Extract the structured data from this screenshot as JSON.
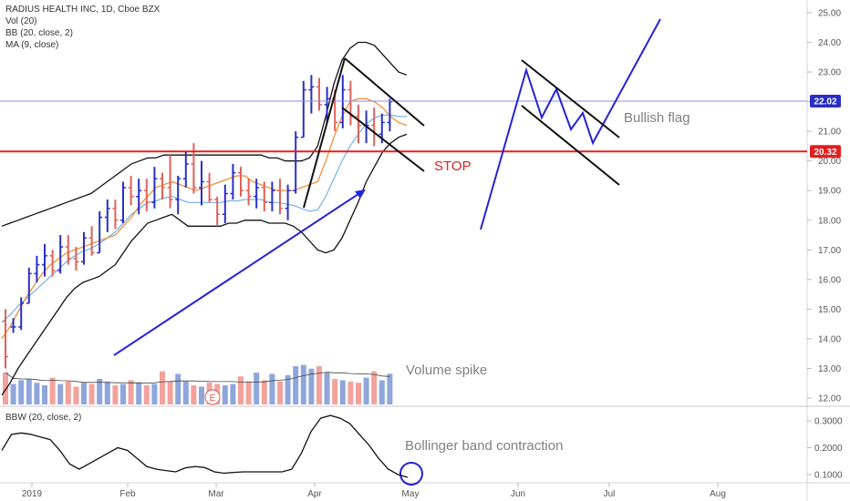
{
  "legend": {
    "title": "RADIUS HEALTH INC, 1D, Cboe BZX",
    "vol": "Vol (20)",
    "bb": "BB (20, close, 2)",
    "ma": "MA (9, close)"
  },
  "bbw_legend": "BBW (20, close, 2)",
  "annotations": {
    "stop": "STOP",
    "bullish_flag": "Bullish flag",
    "volume_spike": "Volume spike",
    "bb_contraction": "Bollinger band contraction",
    "earnings": "E"
  },
  "colors": {
    "up": "#2a2fc8",
    "down": "#e0615a",
    "vol_up": "#8fa6dc",
    "vol_down": "#f2a29c",
    "ma": "#f08a2c",
    "bb_mid": "#5aa4e6",
    "stop_line": "#e02020",
    "blue_draw": "#2323d9",
    "price_line": "#8b8bf0"
  },
  "chart_data": [
    {
      "type": "line",
      "title": "RADIUS HEALTH INC, 1D, Cboe BZX",
      "x_tick_labels": [
        "2019",
        "Feb",
        "Mar",
        "Apr",
        "May",
        "Jun",
        "Jul",
        "Aug"
      ],
      "y_tick_labels": [
        "12.00",
        "13.00",
        "14.00",
        "15.00",
        "16.00",
        "17.00",
        "18.00",
        "19.00",
        "20.00",
        "21.00",
        "22.00",
        "23.00",
        "24.00",
        "25.00"
      ],
      "ylim": [
        11.5,
        25.3
      ],
      "price_labels": [
        {
          "value": 22.02,
          "label": "22.02",
          "color": "#2a2fc8"
        },
        {
          "value": 20.32,
          "label": "20.32",
          "color": "#e02020"
        }
      ],
      "series": [
        {
          "name": "MA (9, close)",
          "values": [
            14.0,
            14.4,
            14.9,
            15.4,
            15.8,
            16.2,
            16.5,
            16.7,
            16.9,
            17.0,
            17.1,
            17.2,
            17.3,
            17.4,
            17.5,
            17.8,
            18.1,
            18.5,
            18.8,
            19.1,
            19.2,
            19.3,
            19.2,
            19.1,
            19.0,
            19.1,
            19.2,
            19.3,
            19.4,
            19.5,
            19.5,
            19.3,
            19.2,
            19.1,
            19.0,
            19.0,
            19.0,
            19.1,
            19.2,
            19.3,
            20.0,
            20.8,
            21.5,
            22.0,
            22.1,
            22.1,
            22.0,
            21.8,
            21.5,
            21.3,
            21.2
          ]
        },
        {
          "name": "BB upper",
          "values": [
            17.8,
            17.9,
            18.0,
            18.1,
            18.2,
            18.3,
            18.4,
            18.5,
            18.6,
            18.7,
            18.8,
            18.9,
            19.1,
            19.3,
            19.5,
            19.7,
            19.9,
            20.0,
            20.1,
            20.1,
            20.2,
            20.2,
            20.2,
            20.2,
            20.2,
            20.2,
            20.2,
            20.2,
            20.2,
            20.2,
            20.2,
            20.2,
            20.2,
            20.1,
            20.1,
            20.0,
            20.0,
            20.0,
            20.1,
            20.5,
            21.5,
            22.6,
            23.4,
            23.8,
            24.0,
            24.0,
            23.9,
            23.6,
            23.3,
            23.0,
            22.9
          ]
        },
        {
          "name": "BB lower",
          "values": [
            12.1,
            12.5,
            13.0,
            13.4,
            13.8,
            14.2,
            14.6,
            15.0,
            15.4,
            15.7,
            15.9,
            16.0,
            16.1,
            16.3,
            16.5,
            16.9,
            17.3,
            17.6,
            17.9,
            18.0,
            18.1,
            18.2,
            18.0,
            17.8,
            17.8,
            17.8,
            17.8,
            17.8,
            17.9,
            17.9,
            18.0,
            18.0,
            18.0,
            17.9,
            17.9,
            17.9,
            17.8,
            17.6,
            17.3,
            17.0,
            16.9,
            17.0,
            17.4,
            18.0,
            18.6,
            19.3,
            19.8,
            20.3,
            20.6,
            20.8,
            20.9
          ]
        }
      ],
      "candles": [
        [
          15.0,
          13.0,
          14.6,
          13.4
        ],
        [
          14.7,
          14.2,
          14.4,
          14.4
        ],
        [
          15.4,
          14.3,
          14.4,
          15.2
        ],
        [
          16.4,
          15.2,
          15.2,
          16.2
        ],
        [
          16.8,
          15.9,
          16.2,
          16.5
        ],
        [
          17.2,
          16.1,
          16.5,
          16.8
        ],
        [
          17.0,
          16.1,
          16.8,
          16.3
        ],
        [
          17.5,
          16.2,
          16.3,
          17.1
        ],
        [
          17.5,
          16.5,
          17.1,
          16.7
        ],
        [
          17.1,
          16.3,
          16.7,
          16.6
        ],
        [
          17.6,
          16.5,
          16.6,
          17.4
        ],
        [
          17.8,
          16.8,
          17.4,
          16.9
        ],
        [
          18.3,
          16.9,
          16.9,
          18.1
        ],
        [
          18.7,
          17.6,
          18.1,
          18.4
        ],
        [
          18.7,
          17.7,
          18.4,
          18.0
        ],
        [
          19.3,
          17.9,
          18.0,
          19.1
        ],
        [
          19.5,
          18.5,
          19.1,
          18.8
        ],
        [
          19.4,
          18.2,
          18.8,
          19.0
        ],
        [
          19.4,
          18.3,
          19.0,
          18.6
        ],
        [
          19.8,
          18.4,
          18.6,
          19.4
        ],
        [
          19.6,
          18.7,
          19.4,
          19.1
        ],
        [
          20.2,
          18.4,
          19.1,
          18.7
        ],
        [
          19.5,
          18.2,
          18.7,
          19.4
        ],
        [
          20.3,
          19.1,
          19.4,
          19.9
        ],
        [
          20.6,
          18.9,
          19.9,
          19.1
        ],
        [
          20.0,
          18.5,
          19.1,
          19.3
        ],
        [
          19.6,
          18.6,
          19.3,
          18.7
        ],
        [
          18.8,
          17.8,
          18.7,
          18.2
        ],
        [
          19.2,
          17.9,
          18.2,
          18.9
        ],
        [
          19.9,
          18.7,
          18.9,
          19.6
        ],
        [
          19.8,
          18.8,
          19.6,
          19.0
        ],
        [
          19.4,
          18.5,
          19.0,
          18.8
        ],
        [
          19.4,
          18.4,
          18.8,
          19.1
        ],
        [
          19.3,
          18.3,
          19.1,
          18.6
        ],
        [
          19.3,
          18.3,
          18.6,
          19.0
        ],
        [
          19.4,
          18.2,
          19.0,
          18.4
        ],
        [
          19.2,
          18.0,
          18.4,
          19.0
        ],
        [
          21.0,
          18.9,
          19.0,
          20.8
        ],
        [
          22.7,
          20.8,
          20.8,
          22.4
        ],
        [
          22.9,
          21.6,
          22.4,
          22.5
        ],
        [
          22.8,
          21.7,
          22.5,
          21.9
        ],
        [
          22.5,
          21.3,
          21.9,
          22.1
        ],
        [
          22.4,
          21.0,
          22.1,
          21.3
        ],
        [
          22.9,
          21.1,
          21.3,
          22.4
        ],
        [
          22.7,
          21.2,
          22.4,
          21.5
        ],
        [
          21.9,
          20.6,
          21.5,
          21.2
        ],
        [
          21.7,
          20.6,
          21.2,
          21.2
        ],
        [
          21.8,
          20.5,
          21.2,
          20.9
        ],
        [
          21.6,
          20.6,
          20.9,
          21.3
        ],
        [
          22.1,
          21.0,
          21.3,
          22.0
        ]
      ],
      "volume": [
        2.5,
        1.6,
        1.9,
        2.0,
        1.7,
        1.5,
        2.1,
        1.6,
        1.8,
        1.4,
        1.7,
        1.6,
        2.0,
        1.8,
        1.5,
        1.6,
        1.9,
        1.7,
        1.5,
        1.6,
        2.6,
        1.8,
        2.4,
        1.8,
        1.5,
        1.4,
        1.7,
        1.6,
        1.5,
        1.6,
        2.2,
        1.8,
        2.5,
        1.9,
        2.4,
        1.8,
        2.3,
        3.0,
        3.1,
        2.8,
        3.0,
        2.5,
        2.0,
        1.9,
        1.8,
        1.7,
        2.1,
        2.6,
        1.9,
        2.4
      ]
    },
    {
      "type": "line",
      "title": "BBW (20, close, 2)",
      "y_tick_labels": [
        "0.1000",
        "0.2000",
        "0.3000"
      ],
      "ylim": [
        0.08,
        0.33
      ],
      "series": [
        {
          "name": "BBW (20, close, 2)",
          "values": [
            0.19,
            0.25,
            0.255,
            0.25,
            0.24,
            0.23,
            0.19,
            0.14,
            0.12,
            0.14,
            0.16,
            0.18,
            0.2,
            0.19,
            0.16,
            0.13,
            0.12,
            0.115,
            0.11,
            0.125,
            0.13,
            0.126,
            0.11,
            0.105,
            0.108,
            0.11,
            0.11,
            0.11,
            0.11,
            0.11,
            0.12,
            0.18,
            0.26,
            0.31,
            0.32,
            0.31,
            0.29,
            0.25,
            0.21,
            0.16,
            0.12,
            0.1,
            0.09
          ]
        }
      ]
    }
  ]
}
